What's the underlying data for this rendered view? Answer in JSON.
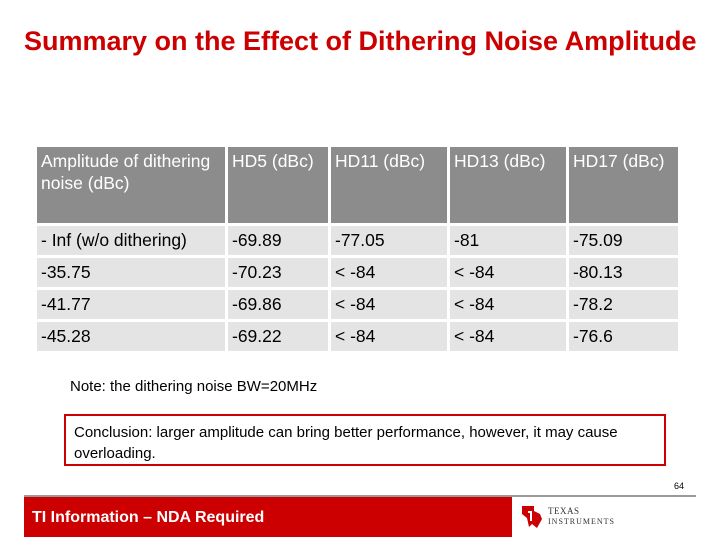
{
  "slide": {
    "title": "Summary on the Effect of Dithering Noise Amplitude",
    "page_number": "64"
  },
  "table": {
    "headers": [
      "Amplitude of dithering noise (dBc)",
      "HD5 (dBc)",
      "HD11 (dBc)",
      "HD13 (dBc)",
      "HD17 (dBc)"
    ],
    "rows": [
      [
        "- Inf (w/o dithering)",
        "-69.89",
        "-77.05",
        "-81",
        "-75.09"
      ],
      [
        "-35.75",
        "-70.23",
        "< -84",
        "< -84",
        "-80.13"
      ],
      [
        "-41.77",
        "-69.86",
        "< -84",
        "< -84",
        "-78.2"
      ],
      [
        "-45.28",
        "-69.22",
        "< -84",
        "< -84",
        "-76.6"
      ]
    ]
  },
  "note": "Note: the dithering noise BW=20MHz",
  "conclusion": "Conclusion: larger amplitude can bring better performance, however, it may cause overloading.",
  "footer": {
    "label": "TI Information – NDA Required",
    "logo_line1": "TEXAS",
    "logo_line2": "INSTRUMENTS",
    "logo_icon": "texas-instruments-logo-icon"
  },
  "colors": {
    "accent": "#cc0000",
    "header_bg": "#8c8c8c",
    "row_bg": "#e4e4e4"
  }
}
